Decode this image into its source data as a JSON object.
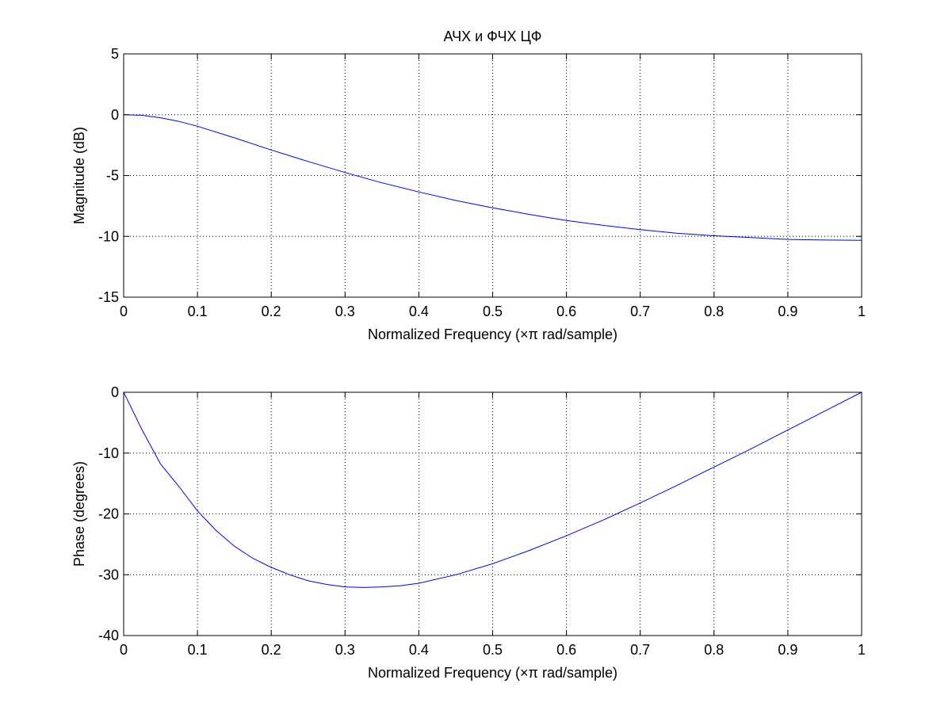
{
  "figure": {
    "background": "#ffffff",
    "line_color": "#0000ff",
    "grid_style": "dotted"
  },
  "chart_data": [
    {
      "type": "line",
      "title": "АЧХ и ФЧХ ЦФ",
      "xlabel": "Normalized Frequency  (×π rad/sample)",
      "ylabel": "Magnitude (dB)",
      "xlim": [
        0,
        1
      ],
      "ylim": [
        -15,
        5
      ],
      "xticks": [
        0,
        0.1,
        0.2,
        0.3,
        0.4,
        0.5,
        0.6,
        0.7,
        0.8,
        0.9,
        1
      ],
      "xtick_labels": [
        "0",
        "0.1",
        "0.2",
        "0.3",
        "0.4",
        "0.5",
        "0.6",
        "0.7",
        "0.8",
        "0.9",
        "1"
      ],
      "yticks": [
        -15,
        -10,
        -5,
        0,
        5
      ],
      "ytick_labels": [
        "-15",
        "-10",
        "-5",
        "0",
        "5"
      ],
      "grid": true,
      "series": [
        {
          "color": "#0000ff",
          "x": [
            0,
            0.025,
            0.05,
            0.075,
            0.1,
            0.15,
            0.2,
            0.25,
            0.3,
            0.35,
            0.4,
            0.45,
            0.5,
            0.55,
            0.6,
            0.65,
            0.7,
            0.75,
            0.8,
            0.85,
            0.9,
            0.95,
            1
          ],
          "y": [
            0,
            -0.05,
            -0.25,
            -0.55,
            -0.95,
            -1.9,
            -2.9,
            -3.85,
            -4.75,
            -5.6,
            -6.35,
            -7.05,
            -7.65,
            -8.2,
            -8.7,
            -9.1,
            -9.45,
            -9.75,
            -9.95,
            -10.1,
            -10.25,
            -10.3,
            -10.32
          ]
        }
      ]
    },
    {
      "type": "line",
      "title": "",
      "xlabel": "Normalized Frequency  (×π rad/sample)",
      "ylabel": "Phase (degrees)",
      "xlim": [
        0,
        1
      ],
      "ylim": [
        -40,
        0
      ],
      "xticks": [
        0,
        0.1,
        0.2,
        0.3,
        0.4,
        0.5,
        0.6,
        0.7,
        0.8,
        0.9,
        1
      ],
      "xtick_labels": [
        "0",
        "0.1",
        "0.2",
        "0.3",
        "0.4",
        "0.5",
        "0.6",
        "0.7",
        "0.8",
        "0.9",
        "1"
      ],
      "yticks": [
        -40,
        -30,
        -20,
        -10,
        0
      ],
      "ytick_labels": [
        "-40",
        "-30",
        "-20",
        "-10",
        "0"
      ],
      "grid": true,
      "series": [
        {
          "color": "#0000ff",
          "x": [
            0,
            0.025,
            0.05,
            0.075,
            0.1,
            0.125,
            0.15,
            0.175,
            0.2,
            0.225,
            0.25,
            0.275,
            0.3,
            0.325,
            0.35,
            0.375,
            0.4,
            0.45,
            0.5,
            0.55,
            0.6,
            0.65,
            0.7,
            0.75,
            0.8,
            0.85,
            0.9,
            0.95,
            1
          ],
          "y": [
            0,
            -6.2,
            -11.8,
            -15.5,
            -19.5,
            -22.7,
            -25.3,
            -27.3,
            -28.8,
            -30.0,
            -31.0,
            -31.6,
            -32.0,
            -32.1,
            -32.0,
            -31.8,
            -31.4,
            -30.0,
            -28.2,
            -26.0,
            -23.6,
            -21.0,
            -18.2,
            -15.3,
            -12.3,
            -9.3,
            -6.2,
            -3.1,
            0
          ]
        }
      ]
    }
  ]
}
